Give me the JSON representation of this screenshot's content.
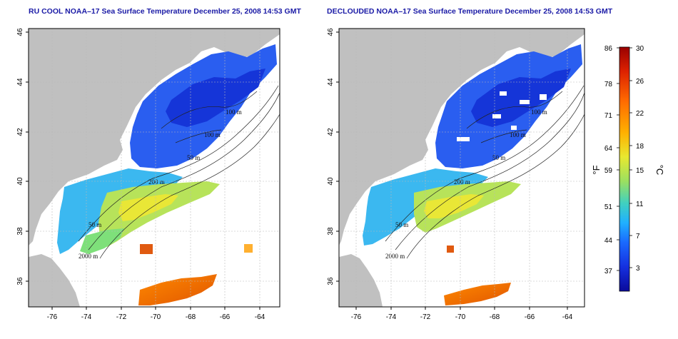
{
  "panels": [
    {
      "title": "RU COOL NOAA–17 Sea Surface Temperature December 25, 2008 14:53 GMT",
      "x_ticks": [
        "-76",
        "-74",
        "-72",
        "-70",
        "-68",
        "-66",
        "-64"
      ],
      "y_ticks": [
        "46",
        "44",
        "42",
        "40",
        "38",
        "36"
      ],
      "contour_labels": [
        "100 m",
        "100 m",
        "50 m",
        "200 m",
        "50 m",
        "2000 m"
      ]
    },
    {
      "title": "DECLOUDED NOAA–17 Sea Surface Temperature December 25, 2008 14:53 GMT",
      "x_ticks": [
        "-76",
        "-74",
        "-72",
        "-70",
        "-68",
        "-66",
        "-64"
      ],
      "y_ticks": [
        "46",
        "44",
        "42",
        "40",
        "38",
        "36"
      ],
      "contour_labels": [
        "100 m",
        "100 m",
        "50 m",
        "200 m",
        "50 m",
        "2000 m"
      ]
    }
  ],
  "colorbar": {
    "fahrenheit_ticks": [
      "86",
      "78",
      "71",
      "64",
      "59",
      "51",
      "44",
      "37"
    ],
    "celsius_ticks": [
      "30",
      "26",
      "22",
      "18",
      "15",
      "11",
      "7",
      "3"
    ],
    "fahrenheit_unit": "°F",
    "celsius_unit": "°C",
    "colors": [
      "#990000",
      "#dd2200",
      "#ff6a00",
      "#ffb000",
      "#e8e830",
      "#9be060",
      "#40d0c0",
      "#20b0ff",
      "#1a6aff",
      "#1530e0",
      "#0a0a9a"
    ]
  },
  "colors": {
    "land": "#c0c0c0",
    "grid": "#b8b8b8",
    "title": "#1a1aa6"
  }
}
